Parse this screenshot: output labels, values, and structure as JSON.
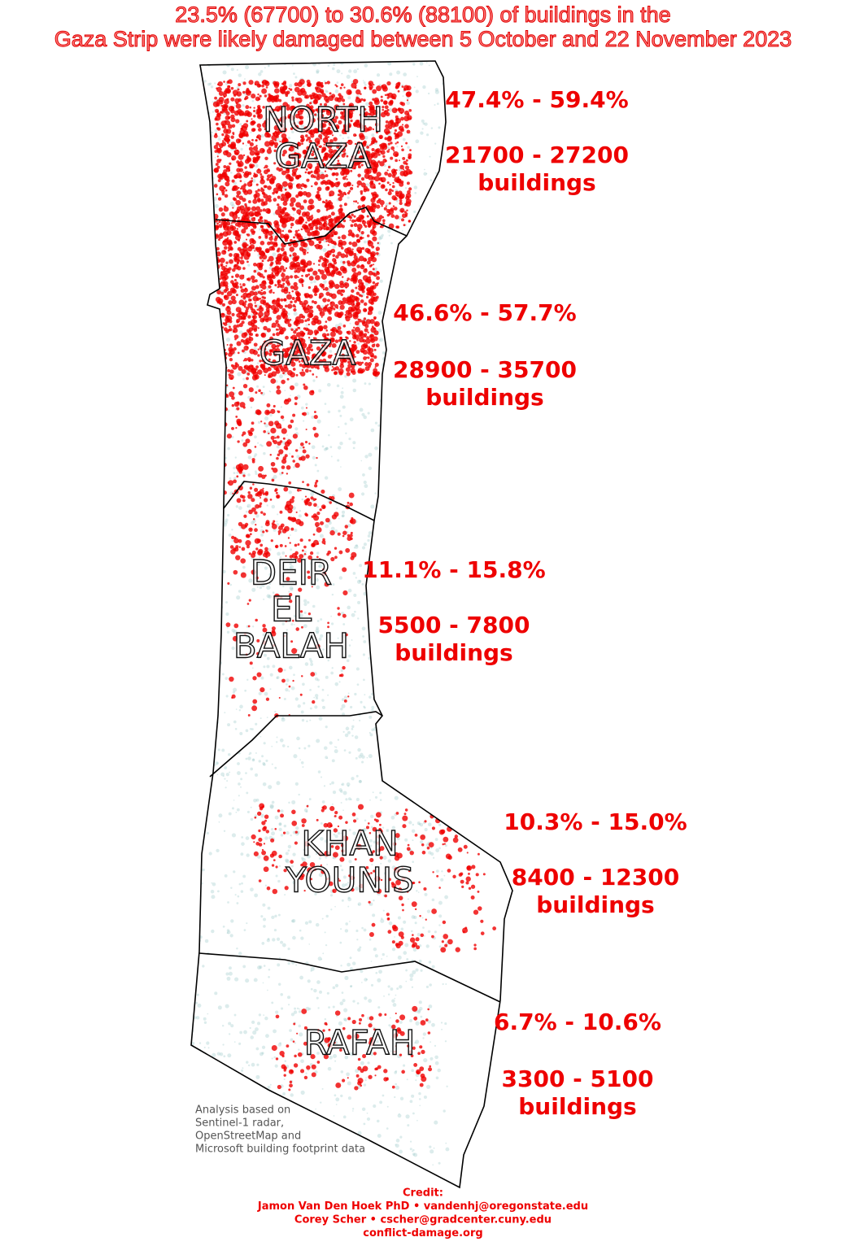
{
  "title": [
    "23.5% (67700) to 30.6% (88100) of buildings in the",
    "Gaza Strip were likely damaged between 5 October and 22 November 2023"
  ],
  "regions": [
    {
      "name": [
        "NORTH",
        "GAZA"
      ],
      "percent_range": "47.4% - 59.4%",
      "building_range": "21700 - 27200",
      "unit": "buildings"
    },
    {
      "name": [
        "GAZA"
      ],
      "percent_range": "46.6% - 57.7%",
      "building_range": "28900 - 35700",
      "unit": "buildings"
    },
    {
      "name": [
        "DEIR",
        "EL",
        "BALAH"
      ],
      "percent_range": "11.1% - 15.8%",
      "building_range": "5500 - 7800",
      "unit": "buildings"
    },
    {
      "name": [
        "KHAN",
        "YOUNIS"
      ],
      "percent_range": "10.3% - 15.0%",
      "building_range": "8400 - 12300",
      "unit": "buildings"
    },
    {
      "name": [
        "RAFAH"
      ],
      "percent_range": "6.7% - 10.6%",
      "building_range": "3300 - 5100",
      "unit": "buildings"
    }
  ],
  "note": [
    "Analysis based on",
    "Sentinel-1 radar,",
    "OpenStreetMap and",
    "Microsoft building footprint data"
  ],
  "credit": [
    "Credit:",
    "Jamon Van Den Hoek PhD • vandenhj@oregonstate.edu",
    "Corey Scher • cscher@gradcenter.cuny.edu",
    "conflict-damage.org"
  ]
}
